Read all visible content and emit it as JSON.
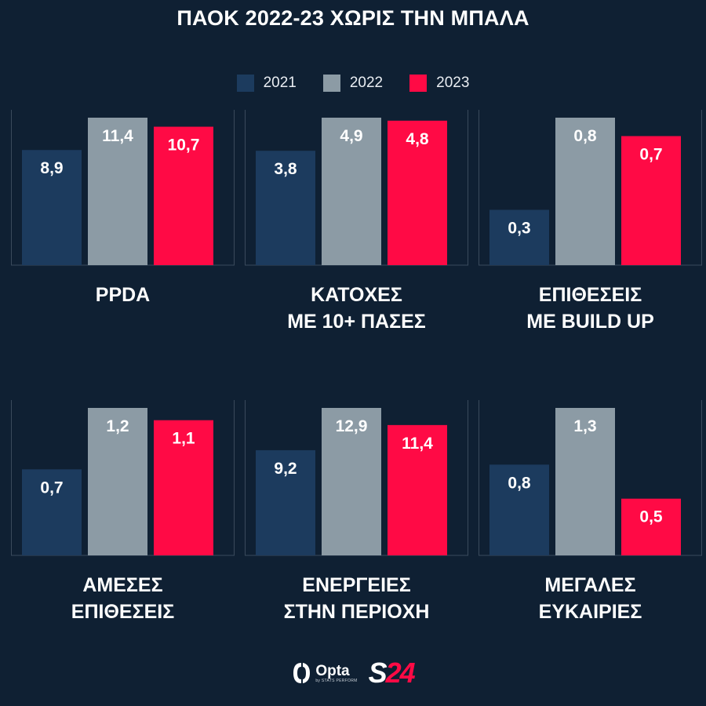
{
  "title": "ΠΑΟΚ 2022-23 ΧΩΡΙΣ ΤΗΝ ΜΠΑΛΑ",
  "colors": {
    "2021": "#1c3b5e",
    "2022": "#8c9ba5",
    "2023": "#ff0a45",
    "background": "#0f2033",
    "axis": "#3a4a5c"
  },
  "legend": [
    {
      "label": "2021",
      "color": "#1c3b5e"
    },
    {
      "label": "2022",
      "color": "#8c9ba5"
    },
    {
      "label": "2023",
      "color": "#ff0a45"
    }
  ],
  "chart_data": [
    {
      "type": "bar",
      "title": "PPDA",
      "categories": [
        "2021",
        "2022",
        "2023"
      ],
      "values": [
        8.9,
        11.4,
        10.7
      ],
      "value_labels": [
        "8,9",
        "11,4",
        "10,7"
      ]
    },
    {
      "type": "bar",
      "title": "ΚΑΤΟΧΕΣ\nΜΕ 10+ ΠΑΣΕΣ",
      "categories": [
        "2021",
        "2022",
        "2023"
      ],
      "values": [
        3.8,
        4.9,
        4.8
      ],
      "value_labels": [
        "3,8",
        "4,9",
        "4,8"
      ]
    },
    {
      "type": "bar",
      "title": "ΕΠΙΘΕΣΕΙΣ\nΜΕ BUILD UP",
      "categories": [
        "2021",
        "2022",
        "2023"
      ],
      "values": [
        0.3,
        0.8,
        0.7
      ],
      "value_labels": [
        "0,3",
        "0,8",
        "0,7"
      ]
    },
    {
      "type": "bar",
      "title": "ΑΜΕΣΕΣ\nΕΠΙΘΕΣΕΙΣ",
      "categories": [
        "2021",
        "2022",
        "2023"
      ],
      "values": [
        0.7,
        1.2,
        1.1
      ],
      "value_labels": [
        "0,7",
        "1,2",
        "1,1"
      ]
    },
    {
      "type": "bar",
      "title": "ΕΝΕΡΓΕΙΕΣ\nΣΤΗΝ ΠΕΡΙΟΧΗ",
      "categories": [
        "2021",
        "2022",
        "2023"
      ],
      "values": [
        9.2,
        12.9,
        11.4
      ],
      "value_labels": [
        "9,2",
        "12,9",
        "11,4"
      ]
    },
    {
      "type": "bar",
      "title": "ΜΕΓΑΛΕΣ\nΕΥΚΑΙΡΙΕΣ",
      "categories": [
        "2021",
        "2022",
        "2023"
      ],
      "values": [
        0.8,
        1.3,
        0.5
      ],
      "value_labels": [
        "0,8",
        "1,3",
        "0,5"
      ]
    }
  ],
  "footer": {
    "opta_name": "Opta",
    "opta_sub": "by STATS PERFORM",
    "brand_s": "S",
    "brand_n": "24"
  }
}
